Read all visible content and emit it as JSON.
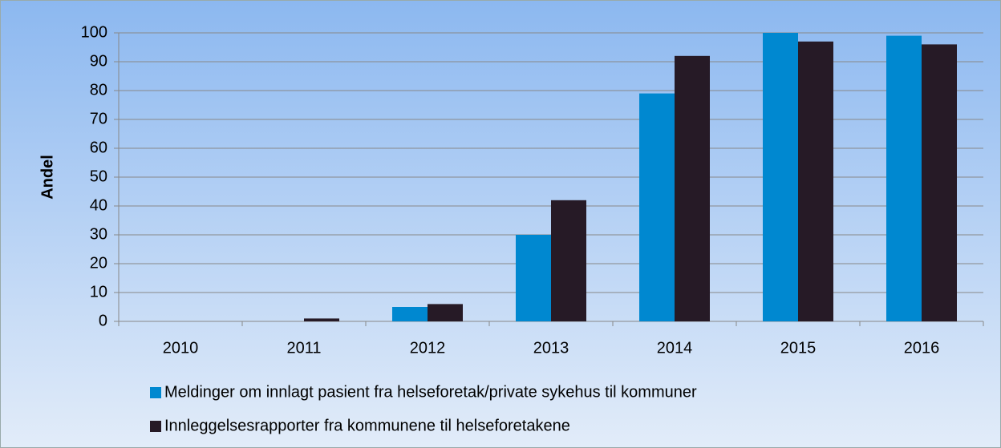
{
  "chart_data": {
    "type": "bar",
    "y_label": "Andel",
    "categories": [
      "2010",
      "2011",
      "2012",
      "2013",
      "2014",
      "2015",
      "2016"
    ],
    "series": [
      {
        "name": "Meldinger om innlagt pasient fra helseforetak/private sykehus til kommuner",
        "color": "#0088d0",
        "values": [
          0,
          0,
          5,
          30,
          79,
          100,
          99
        ]
      },
      {
        "name": "Innleggelsesrapporter fra kommunene til helseforetakene",
        "color": "#261a26",
        "values": [
          0,
          1,
          6,
          42,
          92,
          97,
          96
        ]
      }
    ],
    "ylim": [
      0,
      100
    ],
    "yticks": [
      0,
      10,
      20,
      30,
      40,
      50,
      60,
      70,
      80,
      90,
      100
    ],
    "grid": true,
    "legend": "bottom"
  }
}
